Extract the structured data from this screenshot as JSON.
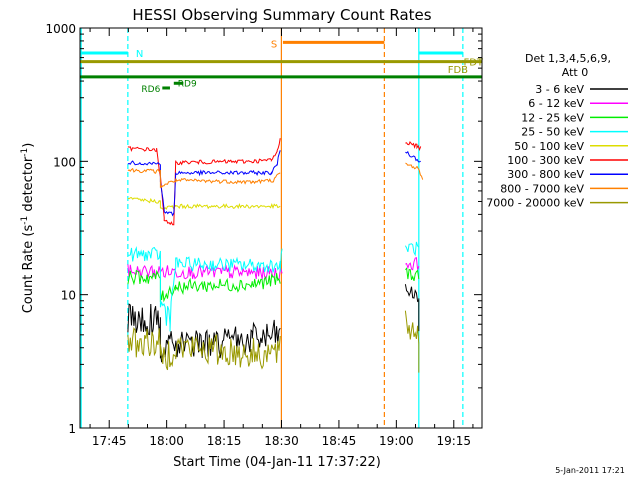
{
  "chart_data": {
    "type": "line",
    "title": "HESSI Observing Summary Count Rates",
    "xlabel": "Start Time (04-Jan-11 17:37:22)",
    "ylabel_main": "Count Rate (s",
    "ylabel_sup1": "-1",
    "ylabel_mid": " detector",
    "ylabel_sup2": "-1",
    "ylabel_end": ")",
    "x_unit": "minutes since 17:37:22",
    "xlim": [
      0,
      105
    ],
    "ylim": [
      1,
      1000
    ],
    "yscale": "log",
    "x_ticks": [
      {
        "value": 7.63,
        "label": "17:45"
      },
      {
        "value": 22.63,
        "label": "18:00"
      },
      {
        "value": 37.63,
        "label": "18:15"
      },
      {
        "value": 52.63,
        "label": "18:30"
      },
      {
        "value": 67.63,
        "label": "18:45"
      },
      {
        "value": 82.63,
        "label": "19:00"
      },
      {
        "value": 97.63,
        "label": "19:15"
      }
    ],
    "y_ticks": [
      {
        "value": 1,
        "label": "1"
      },
      {
        "value": 10,
        "label": "10"
      },
      {
        "value": 100,
        "label": "100"
      },
      {
        "value": 1000,
        "label": "1000"
      }
    ],
    "legend_header": [
      "Det 1,3,4,5,6,9,",
      "Att 0"
    ],
    "series": [
      {
        "name": "3 - 6 keV",
        "color": "#000000",
        "segments": [
          [
            [
              12.5,
              6.5
            ],
            [
              21.0,
              6.5
            ],
            [
              21.0,
              4.0
            ],
            [
              45.0,
              4.6
            ],
            [
              52.3,
              5.0
            ]
          ],
          [
            [
              85.0,
              11.0
            ],
            [
              88.5,
              9.5
            ],
            [
              88.5,
              5.0
            ]
          ]
        ]
      },
      {
        "name": "6 - 12 keV",
        "color": "#ff00ff",
        "segments": [
          [
            [
              12.5,
              15.0
            ],
            [
              52.3,
              14.5
            ],
            [
              52.8,
              16.0
            ]
          ],
          [
            [
              85.0,
              17.0
            ],
            [
              88.5,
              17.0
            ]
          ]
        ]
      },
      {
        "name": "12 - 25 keV",
        "color": "#00ee00",
        "segments": [
          [
            [
              12.5,
              13.5
            ],
            [
              21.0,
              13.5
            ],
            [
              21.0,
              9.5
            ],
            [
              25.0,
              11.5
            ],
            [
              45.0,
              12.0
            ],
            [
              52.3,
              13.0
            ]
          ],
          [
            [
              85.0,
              14.5
            ],
            [
              88.5,
              14.0
            ]
          ]
        ]
      },
      {
        "name": "25 - 50 keV",
        "color": "#00ffff",
        "segments": [
          [
            [
              12.5,
              20.0
            ],
            [
              21.0,
              20.0
            ],
            [
              21.0,
              8.5
            ],
            [
              23.5,
              7.0
            ],
            [
              25.0,
              17.0
            ],
            [
              52.3,
              16.5
            ],
            [
              52.8,
              20.0
            ]
          ],
          [
            [
              85.0,
              23.0
            ],
            [
              88.5,
              22.0
            ]
          ]
        ]
      },
      {
        "name": "50 - 100 keV",
        "color": "#dddd00",
        "segments": [
          [
            [
              12.5,
              52.0
            ],
            [
              21.0,
              50.0
            ],
            [
              21.0,
              44.0
            ],
            [
              25.0,
              46.0
            ],
            [
              52.3,
              46.0
            ]
          ]
        ]
      },
      {
        "name": "100 - 300 keV",
        "color": "#ff0000",
        "segments": [
          [
            [
              12.5,
              125.0
            ],
            [
              20.0,
              122.0
            ],
            [
              21.0,
              76.0
            ],
            [
              22.0,
              37.0
            ],
            [
              24.5,
              33.0
            ],
            [
              25.0,
              98.0
            ],
            [
              45.0,
              100.0
            ],
            [
              50.0,
              102.0
            ],
            [
              51.5,
              118.0
            ],
            [
              52.3,
              150.0
            ]
          ],
          [
            [
              85.0,
              140.0
            ],
            [
              88.0,
              130.0
            ],
            [
              89.0,
              125.0
            ]
          ]
        ]
      },
      {
        "name": "300 - 800 keV",
        "color": "#0000ff",
        "segments": [
          [
            [
              12.5,
              98.0
            ],
            [
              21.0,
              96.0
            ],
            [
              21.0,
              72.0
            ],
            [
              22.0,
              42.0
            ],
            [
              24.5,
              40.0
            ],
            [
              25.0,
              82.0
            ],
            [
              50.0,
              82.0
            ],
            [
              51.5,
              95.0
            ],
            [
              52.3,
              125.0
            ]
          ],
          [
            [
              85.0,
              118.0
            ],
            [
              89.0,
              100.0
            ]
          ]
        ]
      },
      {
        "name": "800 - 7000 keV",
        "color": "#ff8000",
        "segments": [
          [
            [
              12.5,
              86.0
            ],
            [
              21.0,
              84.0
            ],
            [
              21.0,
              65.0
            ],
            [
              25.0,
              72.0
            ],
            [
              45.0,
              70.0
            ],
            [
              50.5,
              72.0
            ],
            [
              52.3,
              82.0
            ]
          ],
          [
            [
              85.0,
              95.0
            ],
            [
              88.0,
              90.0
            ],
            [
              89.5,
              75.0
            ]
          ]
        ]
      },
      {
        "name": "7000 - 20000 keV",
        "color": "#999900",
        "segments": [
          [
            [
              12.5,
              4.4
            ],
            [
              21.0,
              4.4
            ],
            [
              21.0,
              3.2
            ],
            [
              25.0,
              4.1
            ],
            [
              45.0,
              3.6
            ],
            [
              52.3,
              3.7
            ]
          ],
          [
            [
              85.0,
              6.0
            ],
            [
              88.5,
              5.0
            ],
            [
              88.5,
              2.8
            ]
          ]
        ]
      }
    ],
    "annotations": {
      "night_segments": [
        {
          "label": "N",
          "color": "#00ffff",
          "x_start": 0,
          "x_end": 12.5,
          "y": 650
        },
        {
          "label": "",
          "color": "#00ffff",
          "x_start": 88.5,
          "x_end": 100,
          "y": 650
        }
      ],
      "saa_segment": {
        "label": "S",
        "color": "#ff8000",
        "x_start": 53.0,
        "x_end": 79.5,
        "y": 780
      },
      "fdt_line": {
        "label": "FDT",
        "color": "#999900",
        "x_start": 0,
        "x_end": 105,
        "y": 560
      },
      "fdb_line": {
        "label": "FDB",
        "color": "#008000",
        "x_start": 0,
        "x_end": 105,
        "y": 430
      },
      "rd_markers": [
        {
          "label": "RD9",
          "color": "#008000",
          "x_start": 24.5,
          "x_end": 27.0,
          "y": 385
        },
        {
          "label": "RD6",
          "color": "#008000",
          "x_start": 21.5,
          "x_end": 23.5,
          "y": 355
        }
      ],
      "cyan_lines": [
        {
          "x": 0.3,
          "dashed": false
        },
        {
          "x": 12.5,
          "dashed": true
        },
        {
          "x": 88.5,
          "dashed": false
        },
        {
          "x": 100.0,
          "dashed": true
        }
      ],
      "orange_lines": [
        {
          "x": 52.6,
          "dashed": false
        },
        {
          "x": 79.5,
          "dashed": true
        }
      ]
    },
    "footer_date": "5-Jan-2011 17:21"
  }
}
